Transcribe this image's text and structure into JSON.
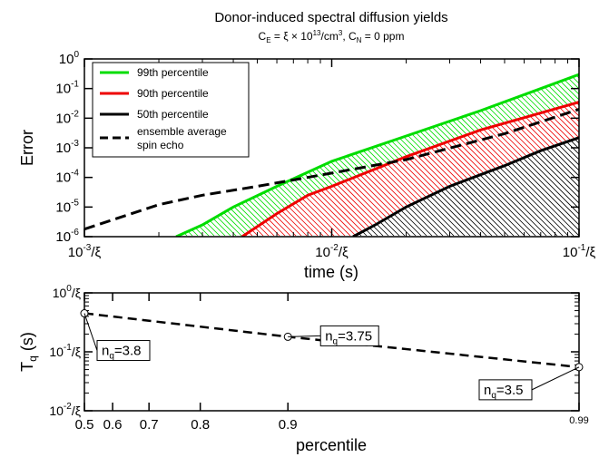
{
  "chart_data": [
    {
      "type": "area",
      "title": "Donor-induced spectral diffusion yields",
      "subtitle": {
        "ce_prefix": "C",
        "ce_sub": "E",
        "ce_mid": " = ξ × 10",
        "ce_exp": "13",
        "ce_unit": "/cm",
        "ce_unit_exp": "3",
        "cn_sep": ", C",
        "cn_sub": "N",
        "cn_val": " = 0 ppm"
      },
      "xlabel": "time (s)",
      "ylabel": "Error",
      "x_scale": "log",
      "y_scale": "log",
      "xlim": [
        0.001,
        0.1
      ],
      "ylim": [
        1e-06,
        1
      ],
      "x_ticks": [
        {
          "value": 0.001,
          "base": "10",
          "exp": "-3",
          "suffix": "/ξ"
        },
        {
          "value": 0.01,
          "base": "10",
          "exp": "-2",
          "suffix": "/ξ"
        },
        {
          "value": 0.1,
          "base": "10",
          "exp": "-1",
          "suffix": "/ξ"
        }
      ],
      "y_ticks": [
        {
          "value": 1,
          "base": "10",
          "exp": "0"
        },
        {
          "value": 0.1,
          "base": "10",
          "exp": "-1"
        },
        {
          "value": 0.01,
          "base": "10",
          "exp": "-2"
        },
        {
          "value": 0.001,
          "base": "10",
          "exp": "-3"
        },
        {
          "value": 0.0001,
          "base": "10",
          "exp": "-4"
        },
        {
          "value": 1e-05,
          "base": "10",
          "exp": "-5"
        },
        {
          "value": 1e-06,
          "base": "10",
          "exp": "-6"
        }
      ],
      "legend_position": "top-left",
      "series": [
        {
          "name": "99th percentile",
          "color": "#00dd00",
          "style": "solid",
          "hatch": true,
          "x": [
            0.00235,
            0.003,
            0.004,
            0.006,
            0.01,
            0.02,
            0.04,
            0.07,
            0.1
          ],
          "y": [
            1e-06,
            2.5e-06,
            1e-05,
            5e-05,
            0.00035,
            0.0025,
            0.018,
            0.1,
            0.3
          ]
        },
        {
          "name": "90th percentile",
          "color": "#ee0000",
          "style": "solid",
          "hatch": true,
          "x": [
            0.00434,
            0.006,
            0.008,
            0.01,
            0.02,
            0.04,
            0.07,
            0.1
          ],
          "y": [
            1e-06,
            6e-06,
            2.5e-05,
            5e-05,
            0.0005,
            0.004,
            0.015,
            0.035
          ]
        },
        {
          "name": "50th percentile",
          "color": "#000000",
          "style": "solid",
          "hatch": true,
          "x": [
            0.0122,
            0.015,
            0.02,
            0.03,
            0.05,
            0.07,
            0.1
          ],
          "y": [
            1e-06,
            2.5e-06,
            1e-05,
            5e-05,
            0.00025,
            0.0008,
            0.0022
          ]
        },
        {
          "name_lines": [
            "ensemble average",
            "spin echo"
          ],
          "color": "#000000",
          "style": "dashed",
          "hatch": false,
          "x": [
            0.001,
            0.002,
            0.003,
            0.005,
            0.01,
            0.02,
            0.05,
            0.1
          ],
          "y": [
            1.8e-06,
            1.2e-05,
            2.5e-05,
            5e-05,
            0.00014,
            0.0004,
            0.003,
            0.02
          ]
        }
      ]
    },
    {
      "type": "line",
      "xlabel": "percentile",
      "ylabel_main": "T",
      "ylabel_sub": "q",
      "ylabel_unit": " (s)",
      "x_scale": "custom-percentile",
      "y_scale": "log",
      "xlim": [
        0.5,
        0.99
      ],
      "ylim": [
        0.01,
        1
      ],
      "x_ticks": [
        "0.5",
        "0.6",
        "0.7",
        "0.8",
        "0.9",
        "0.99"
      ],
      "y_ticks": [
        {
          "value": 1,
          "base": "10",
          "exp": "0",
          "suffix": "/ξ"
        },
        {
          "value": 0.1,
          "base": "10",
          "exp": "-1",
          "suffix": "/ξ"
        },
        {
          "value": 0.01,
          "base": "10",
          "exp": "-2",
          "suffix": "/ξ"
        }
      ],
      "series": [
        {
          "color": "#000000",
          "style": "dashed",
          "marker": "open-circle",
          "x": [
            0.5,
            0.9,
            0.99
          ],
          "y": [
            0.45,
            0.18,
            0.055
          ]
        }
      ],
      "annotations": [
        {
          "label_main": "n",
          "label_sub": "q",
          "label_val": "=3.8",
          "x": 0.5,
          "y": 0.45
        },
        {
          "label_main": "n",
          "label_sub": "q",
          "label_val": "=3.75",
          "x": 0.9,
          "y": 0.18
        },
        {
          "label_main": "n",
          "label_sub": "q",
          "label_val": "=3.5",
          "x": 0.99,
          "y": 0.055
        }
      ]
    }
  ]
}
